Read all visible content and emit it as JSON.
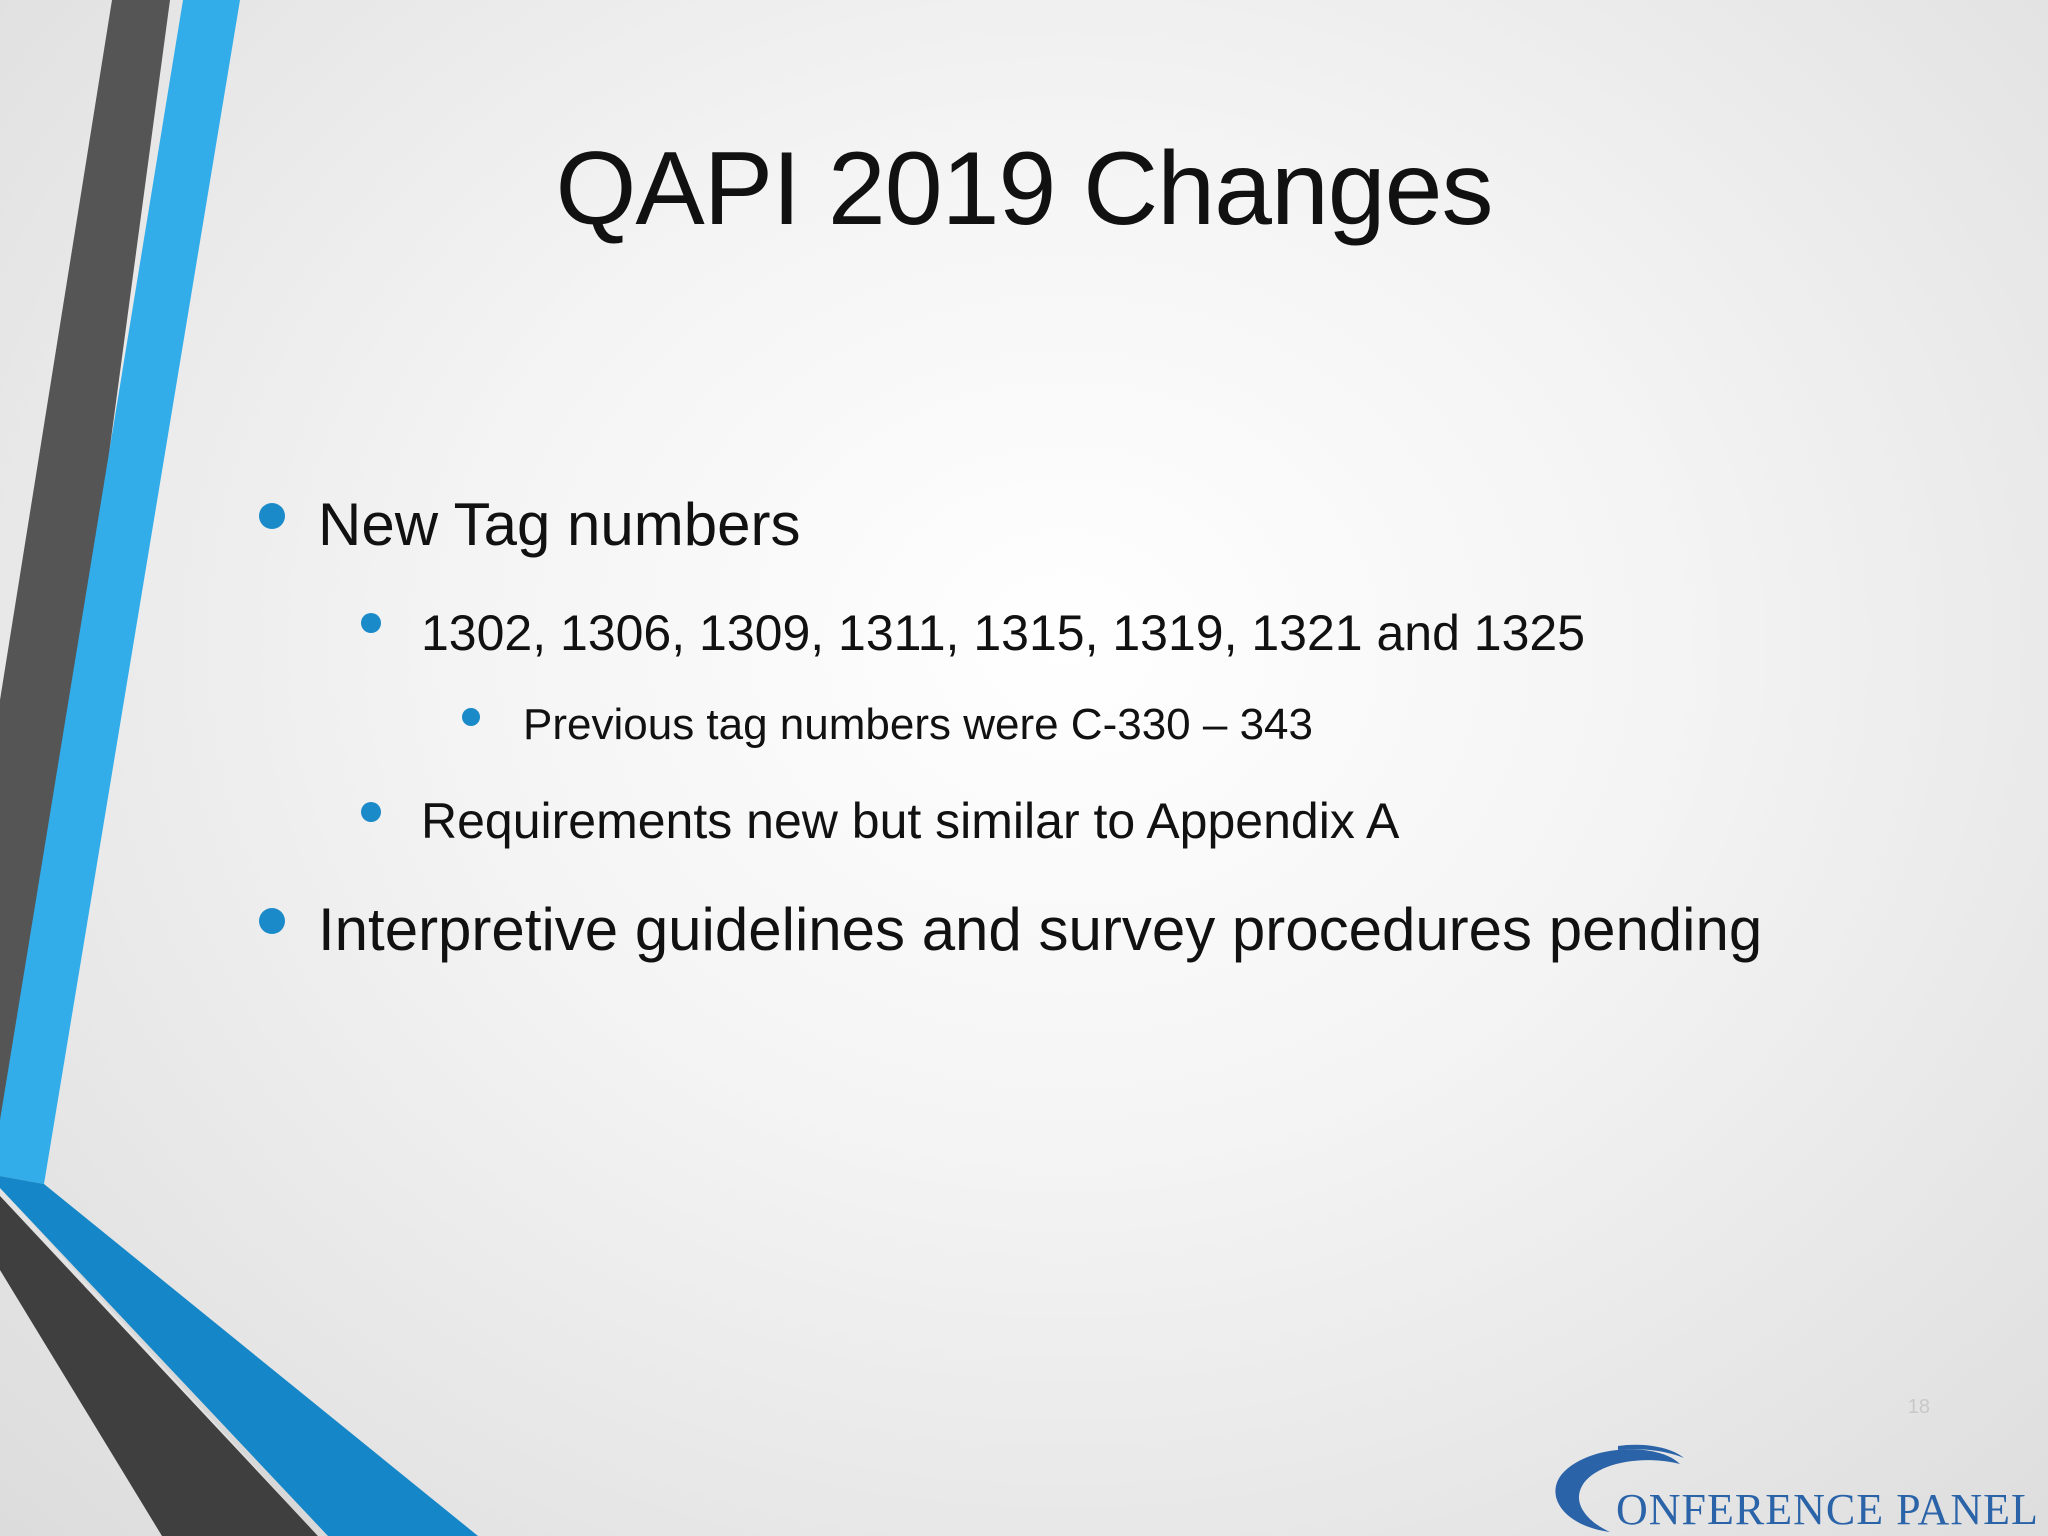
{
  "slide": {
    "title": "QAPI 2019 Changes",
    "page_number": "18",
    "bullets": [
      {
        "level": 1,
        "text": "New Tag numbers"
      },
      {
        "level": 2,
        "text": "1302, 1306, 1309, 1311, 1315, 1319, 1321 and 1325"
      },
      {
        "level": 3,
        "text": "Previous tag numbers were C-330 – 343"
      },
      {
        "level": 2,
        "text": "Requirements new but similar to Appendix A"
      },
      {
        "level": 1,
        "text": "Interpretive guidelines and survey procedures pending"
      }
    ]
  },
  "logo": {
    "text": "ONFERENCE  PANEL",
    "icon": "c-swoosh-logo-icon"
  },
  "colors": {
    "accent_blue": "#33adea",
    "dark_blue": "#1587c8",
    "dark_gray": "#4a4a4a",
    "bullet": "#1a8ac9",
    "logo": "#2b63a8"
  }
}
